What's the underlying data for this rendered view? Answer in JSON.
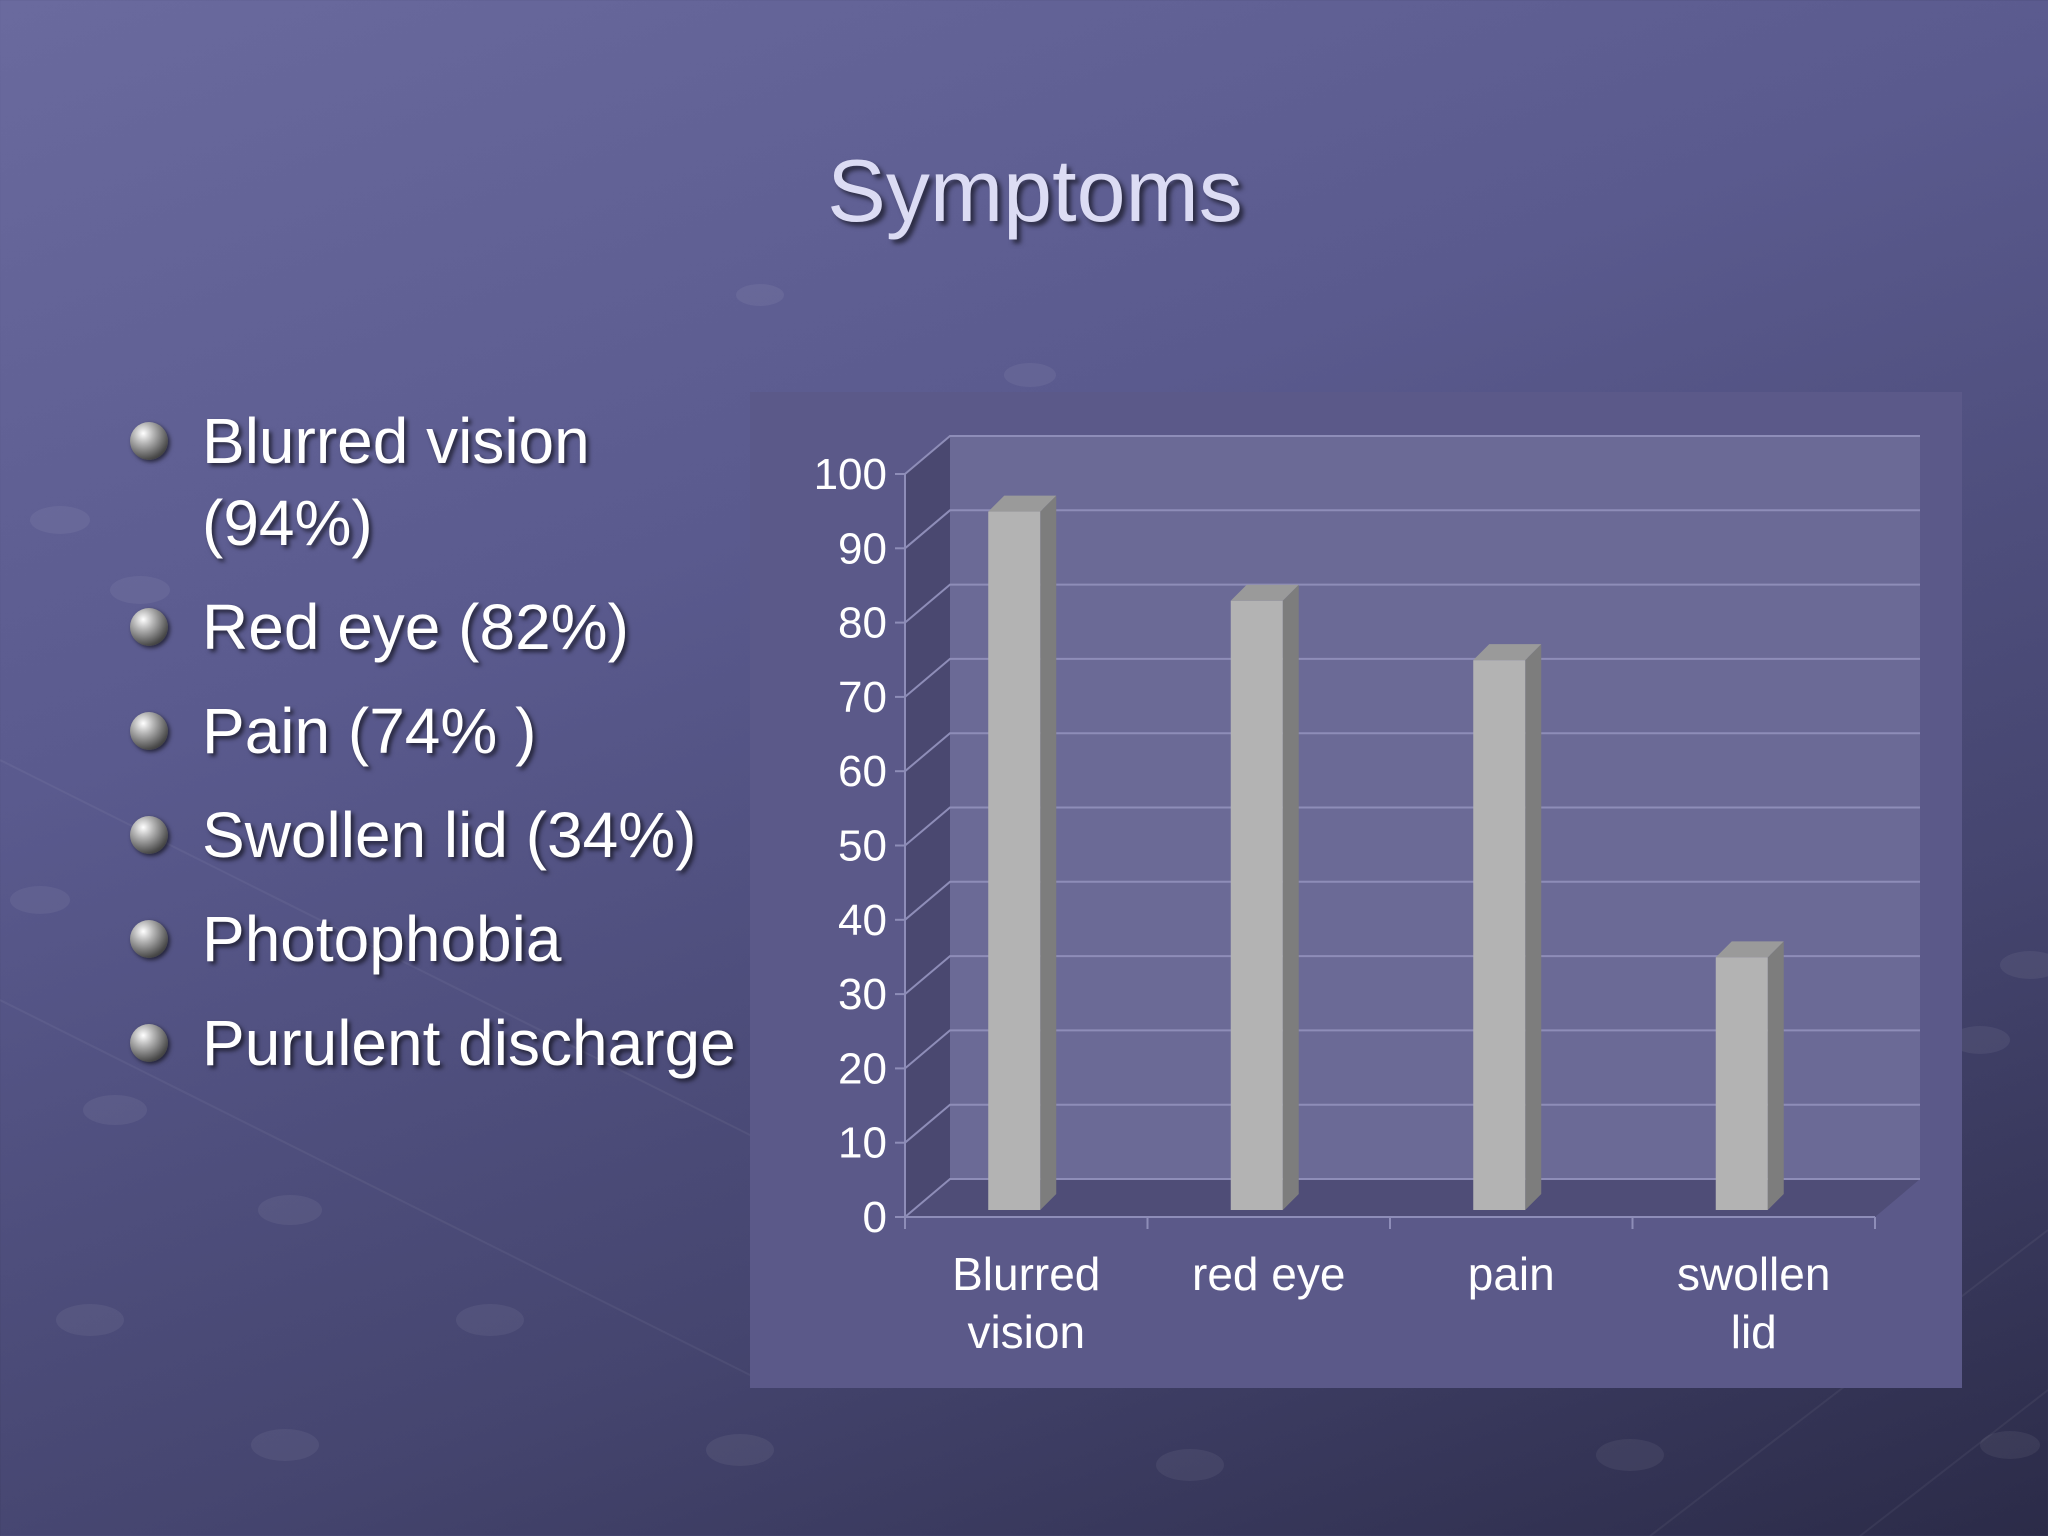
{
  "slide": {
    "title": "Symptoms",
    "bullets": [
      "Blurred vision (94%)",
      "Red eye (82%)",
      "Pain (74% )",
      "Swollen lid (34%)",
      "Photophobia",
      "Purulent discharge"
    ]
  },
  "chart_data": {
    "type": "bar",
    "categories": [
      [
        "Blurred",
        "vision"
      ],
      [
        "red eye"
      ],
      [
        "pain"
      ],
      [
        "swollen",
        "lid"
      ]
    ],
    "values": [
      94,
      82,
      74,
      34
    ],
    "yticks": [
      0,
      10,
      20,
      30,
      40,
      50,
      60,
      70,
      80,
      90,
      100
    ],
    "ylim": [
      0,
      100
    ],
    "grid": true,
    "style": "3d-column",
    "colors": {
      "bar_front": "#b3b3b3",
      "bar_side": "#7d7d7d",
      "bar_top": "#9a9a9a",
      "plot_back": "#6b6a96",
      "plot_side": "#4a4870",
      "plot_floor": "#4f4d77",
      "gridline": "#8e8db8",
      "axis_text": "#ffffff"
    }
  }
}
